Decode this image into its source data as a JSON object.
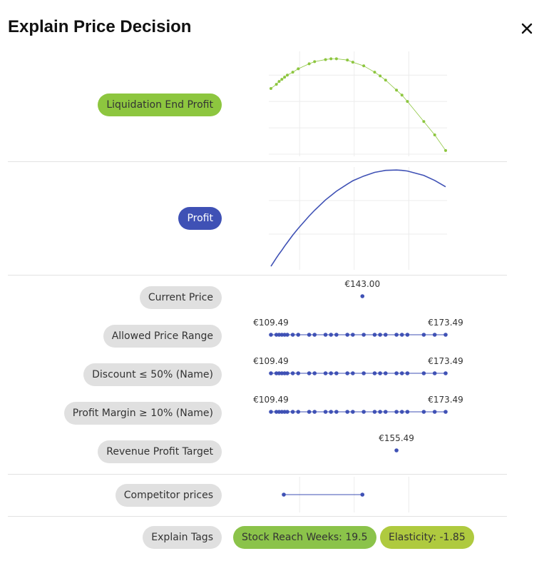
{
  "header": {
    "title": "Explain Price Decision"
  },
  "price_scale": {
    "xlim": [
      109.49,
      173.49
    ],
    "xticks": [
      120,
      140,
      160
    ]
  },
  "charts": [
    {
      "label": "Liquidation End Profit",
      "type": "scatter-line",
      "color": "#8dc63f",
      "label_color": "#8dc63f",
      "x": [
        109.49,
        111.49,
        112.49,
        113.49,
        114.49,
        115.49,
        117.49,
        119.49,
        123.49,
        125.49,
        129.49,
        131.49,
        133.49,
        137.49,
        139.49,
        143.49,
        147.49,
        149.49,
        151.49,
        155.49,
        157.49,
        159.49,
        165.49,
        169.49,
        173.49
      ],
      "values": [
        2.49,
        2.65,
        2.76,
        2.84,
        2.92,
        3.0,
        3.11,
        3.24,
        3.43,
        3.51,
        3.59,
        3.62,
        3.62,
        3.57,
        3.49,
        3.35,
        3.11,
        2.97,
        2.81,
        2.43,
        2.24,
        2.0,
        1.24,
        0.73,
        0.14
      ],
      "ylim": [
        0,
        3.9
      ],
      "yticks": [
        0,
        1,
        2,
        3
      ]
    },
    {
      "label": "Profit",
      "type": "line",
      "color": "#3f51b5",
      "label_color": "#3f51b5",
      "x": [
        109.49,
        111.49,
        112.49,
        113.49,
        114.49,
        115.49,
        117.49,
        119.49,
        123.49,
        125.49,
        129.49,
        131.49,
        133.49,
        137.49,
        139.49,
        143.49,
        147.49,
        149.49,
        151.49,
        155.49,
        157.49,
        159.49,
        165.49,
        169.49,
        173.49
      ],
      "values": [
        0.04,
        0.29,
        0.41,
        0.52,
        0.64,
        0.75,
        0.97,
        1.17,
        1.54,
        1.71,
        2.02,
        2.15,
        2.28,
        2.49,
        2.59,
        2.73,
        2.84,
        2.87,
        2.9,
        2.91,
        2.9,
        2.88,
        2.75,
        2.6,
        2.41
      ],
      "ylim": [
        0,
        3
      ],
      "yticks": [
        1,
        2
      ]
    }
  ],
  "constraints": [
    {
      "label": "Current Price",
      "points": [
        {
          "value": 143,
          "label": "€143.00"
        }
      ],
      "dots": [
        143
      ]
    },
    {
      "label": "Allowed Price Range",
      "points": [
        {
          "value": 109.49,
          "label": "€109.49"
        },
        {
          "value": 173.49,
          "label": "€173.49"
        }
      ],
      "dots": [
        109.49,
        111.49,
        112.49,
        113.49,
        114.49,
        115.49,
        117.49,
        119.49,
        123.49,
        125.49,
        129.49,
        131.49,
        133.49,
        137.49,
        139.49,
        143.49,
        147.49,
        149.49,
        151.49,
        155.49,
        157.49,
        159.49,
        165.49,
        169.49,
        173.49
      ]
    },
    {
      "label": "Discount ≤ 50% (Name)",
      "points": [
        {
          "value": 109.49,
          "label": "€109.49"
        },
        {
          "value": 173.49,
          "label": "€173.49"
        }
      ],
      "dots": [
        109.49,
        111.49,
        112.49,
        113.49,
        114.49,
        115.49,
        117.49,
        119.49,
        123.49,
        125.49,
        129.49,
        131.49,
        133.49,
        137.49,
        139.49,
        143.49,
        147.49,
        149.49,
        151.49,
        155.49,
        157.49,
        159.49,
        165.49,
        169.49,
        173.49
      ]
    },
    {
      "label": "Profit Margin ≥ 10% (Name)",
      "points": [
        {
          "value": 109.49,
          "label": "€109.49"
        },
        {
          "value": 173.49,
          "label": "€173.49"
        }
      ],
      "dots": [
        109.49,
        111.49,
        112.49,
        113.49,
        114.49,
        115.49,
        117.49,
        119.49,
        123.49,
        125.49,
        129.49,
        131.49,
        133.49,
        137.49,
        139.49,
        143.49,
        147.49,
        149.49,
        151.49,
        155.49,
        157.49,
        159.49,
        165.49,
        169.49,
        173.49
      ]
    },
    {
      "label": "Revenue Profit Target",
      "points": [
        {
          "value": 155.49,
          "label": "€155.49"
        }
      ],
      "dots": [
        155.49
      ]
    }
  ],
  "competitors": {
    "label": "Competitor prices",
    "values": [
      114.2,
      143.0
    ],
    "color": "#3f51b5"
  },
  "tags": {
    "label": "Explain Tags",
    "items": [
      {
        "text": "Stock Reach Weeks: 19.5",
        "color": "#8bc34a"
      },
      {
        "text": "Elasticity: -1.85",
        "color": "#afca3f"
      }
    ]
  }
}
